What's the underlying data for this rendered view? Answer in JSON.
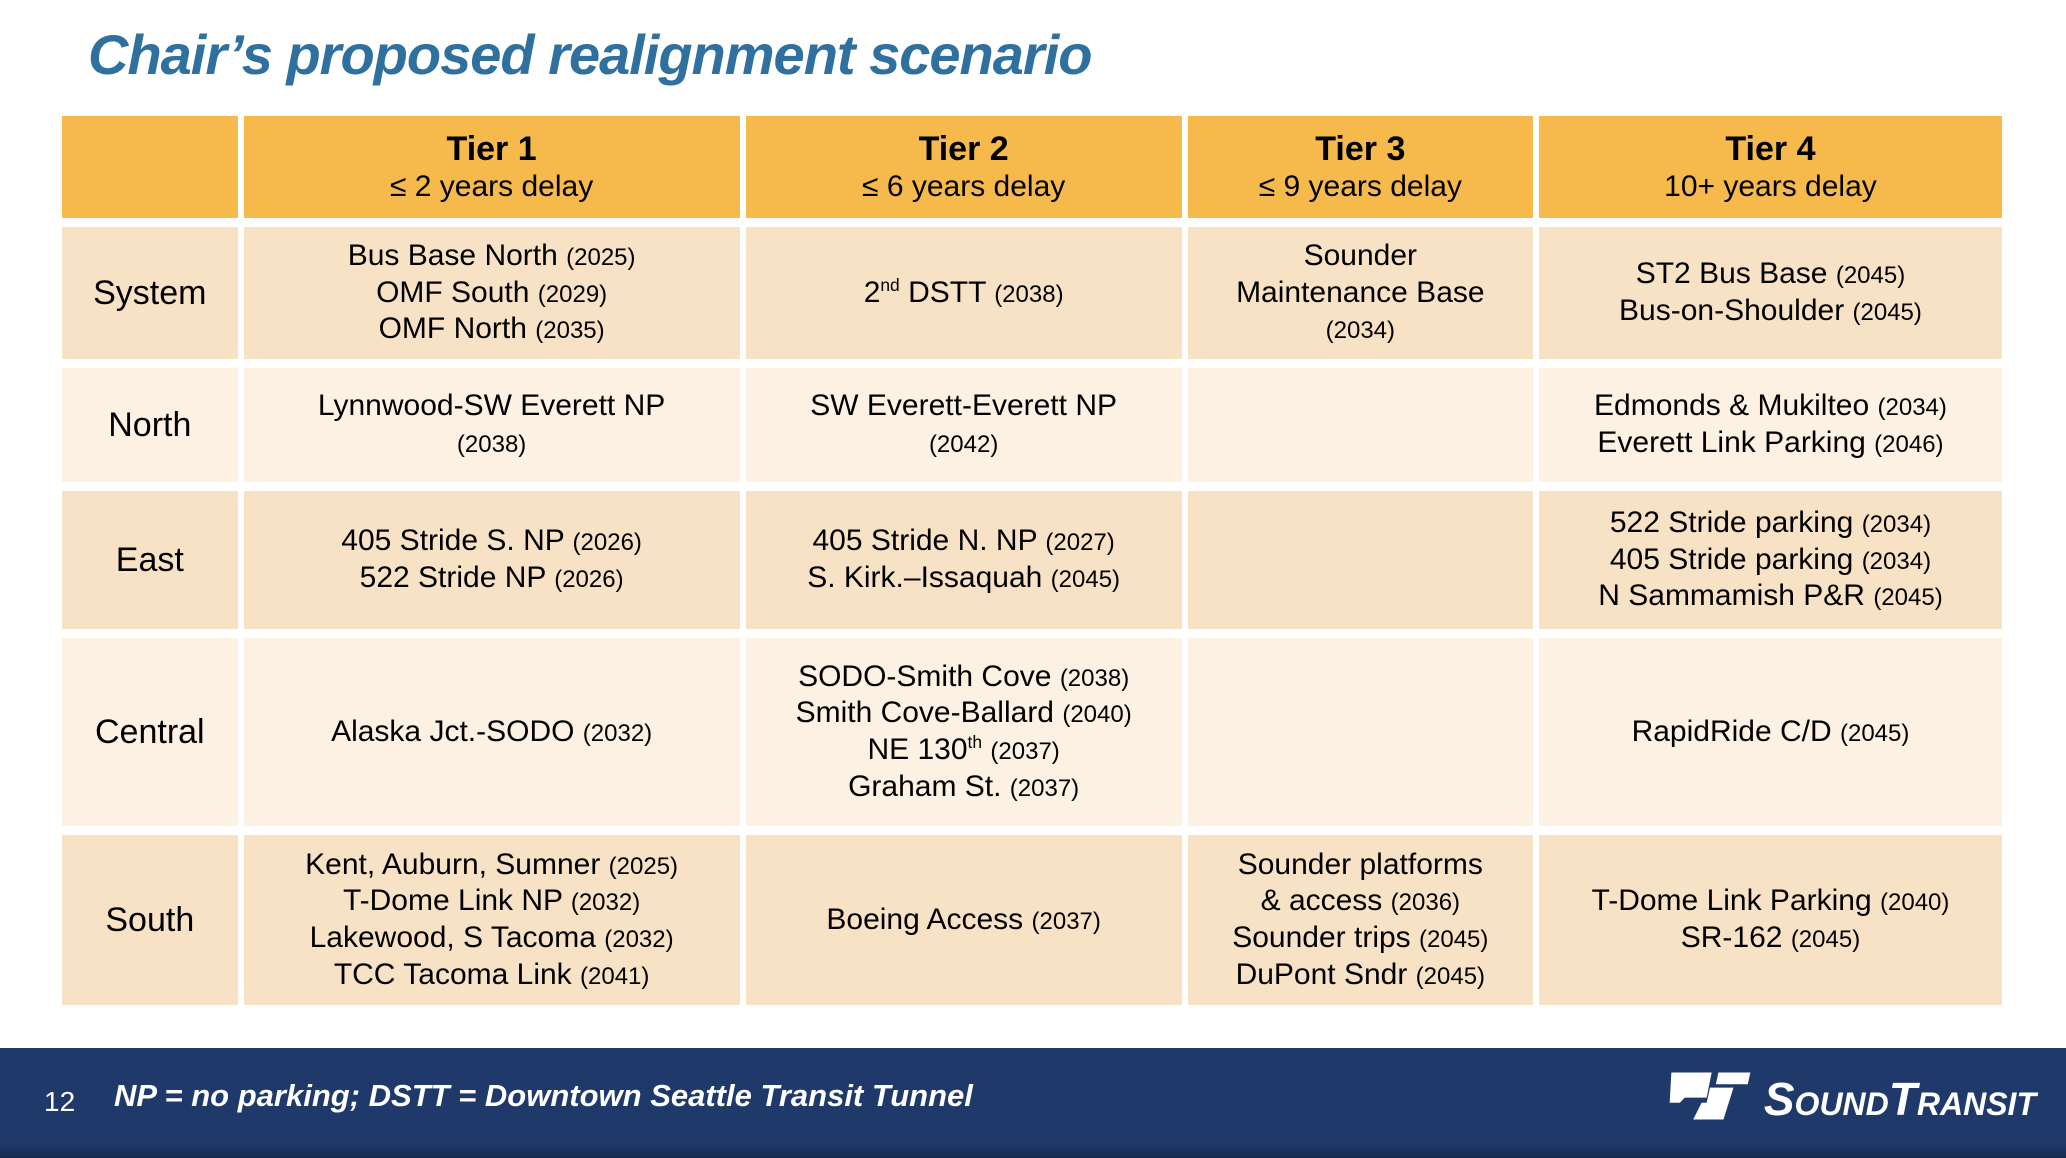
{
  "title": "Chair’s proposed realignment scenario",
  "table": {
    "tiers": [
      {
        "label": "Tier 1",
        "sub": "≤ 2 years delay"
      },
      {
        "label": "Tier 2",
        "sub": "≤ 6 years delay"
      },
      {
        "label": "Tier 3",
        "sub": "≤ 9 years delay"
      },
      {
        "label": "Tier 4",
        "sub": "10+ years delay"
      }
    ],
    "rows": [
      {
        "label": "System",
        "cells": [
          [
            "Bus Base North (2025)",
            "OMF South (2029)",
            "OMF North (2035)"
          ],
          [
            "2^{nd} DSTT (2038)"
          ],
          [
            "Sounder",
            "Maintenance Base",
            "(2034)"
          ],
          [
            "ST2 Bus Base (2045)",
            "Bus-on-Shoulder (2045)"
          ]
        ]
      },
      {
        "label": "North",
        "cells": [
          [
            "Lynnwood-SW Everett NP",
            "(2038)"
          ],
          [
            "SW Everett-Everett NP",
            "(2042)"
          ],
          [],
          [
            "Edmonds & Mukilteo (2034)",
            "Everett Link Parking (2046)"
          ]
        ]
      },
      {
        "label": "East",
        "cells": [
          [
            "405 Stride S. NP (2026)",
            "522 Stride NP (2026)"
          ],
          [
            "405 Stride N. NP (2027)",
            "S. Kirk.–Issaquah (2045)"
          ],
          [],
          [
            "522 Stride parking (2034)",
            "405 Stride parking (2034)",
            "N Sammamish P&R (2045)"
          ]
        ]
      },
      {
        "label": "Central",
        "cells": [
          [
            "Alaska Jct.-SODO (2032)"
          ],
          [
            "SODO-Smith Cove (2038)",
            "Smith Cove-Ballard (2040)",
            "NE 130^{th} (2037)",
            "Graham St. (2037)"
          ],
          [],
          [
            "RapidRide C/D (2045)"
          ]
        ]
      },
      {
        "label": "South",
        "cells": [
          [
            "Kent, Auburn, Sumner (2025)",
            "T-Dome Link NP (2032)",
            "Lakewood, S Tacoma (2032)",
            "TCC Tacoma Link (2041)"
          ],
          [
            "Boeing Access (2037)"
          ],
          [
            "Sounder platforms",
            "& access (2036)",
            "Sounder trips (2045)",
            "DuPont Sndr (2045)"
          ],
          [
            "T-Dome Link Parking (2040)",
            "SR-162 (2045)"
          ]
        ]
      }
    ]
  },
  "footer": {
    "page_number": "12",
    "note": "NP = no parking; DSTT = Downtown Seattle Transit Tunnel",
    "brand_word1": "Sound",
    "brand_word2": "Transit"
  },
  "colors": {
    "title": "#30709E",
    "header_bg": "#F5B94C",
    "row_dark_bg": "#F8E2C6",
    "row_light_bg": "#FCF1E3",
    "footer_bg": "#20396B"
  }
}
